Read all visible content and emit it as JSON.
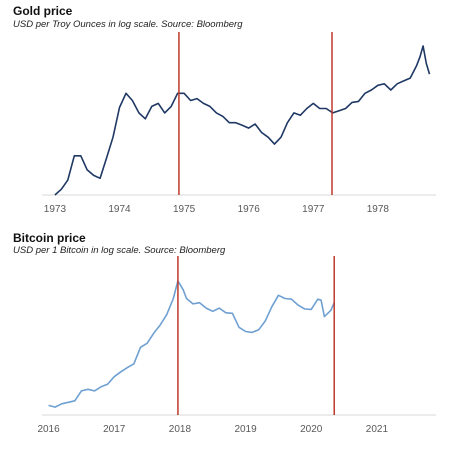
{
  "chart_data": [
    {
      "type": "line",
      "title": "Gold price",
      "subtitle": "USD per Troy Ounces in log scale. Source: Bloomberg",
      "xlabel": "",
      "ylabel": "",
      "y_scale": "log",
      "y_axis_labels_shown": false,
      "grid": false,
      "xlim": [
        1972.8,
        1978.9
      ],
      "ylim": [
        90,
        900
      ],
      "x_ticks": [
        "1973",
        "1974",
        "1975",
        "1976",
        "1977",
        "1978"
      ],
      "vertical_markers": [
        {
          "x": 1974.92,
          "color": "#c0392b"
        },
        {
          "x": 1977.29,
          "color": "#c0392b"
        }
      ],
      "series": [
        {
          "color": "#1f3864",
          "x": [
            1973.0,
            1973.1,
            1973.2,
            1973.3,
            1973.4,
            1973.5,
            1973.6,
            1973.7,
            1973.8,
            1973.9,
            1974.0,
            1974.1,
            1974.2,
            1974.3,
            1974.4,
            1974.5,
            1974.6,
            1974.7,
            1974.8,
            1974.9,
            1974.95,
            1975.0,
            1975.1,
            1975.2,
            1975.3,
            1975.4,
            1975.5,
            1975.6,
            1975.7,
            1975.8,
            1975.9,
            1976.0,
            1976.1,
            1976.2,
            1976.3,
            1976.4,
            1976.5,
            1976.6,
            1976.7,
            1976.8,
            1976.9,
            1977.0,
            1977.1,
            1977.2,
            1977.3,
            1977.4,
            1977.5,
            1977.6,
            1977.7,
            1977.8,
            1977.9,
            1978.0,
            1978.1,
            1978.2,
            1978.3,
            1978.4,
            1978.5,
            1978.6,
            1978.65,
            1978.7,
            1978.75,
            1978.8
          ],
          "y": [
            90,
            98,
            112,
            160,
            160,
            130,
            120,
            115,
            155,
            210,
            325,
            400,
            360,
            300,
            275,
            330,
            345,
            300,
            330,
            400,
            400,
            400,
            360,
            370,
            345,
            330,
            300,
            285,
            260,
            260,
            250,
            240,
            255,
            225,
            210,
            190,
            210,
            260,
            300,
            290,
            320,
            345,
            320,
            320,
            300,
            310,
            320,
            350,
            355,
            400,
            420,
            450,
            460,
            420,
            460,
            480,
            500,
            600,
            680,
            800,
            620,
            530
          ]
        }
      ]
    },
    {
      "type": "line",
      "title": "Bitcoin price",
      "subtitle": "USD per 1 Bitcoin in log scale. Source: Bloomberg",
      "xlabel": "",
      "ylabel": "",
      "y_scale": "log",
      "y_axis_labels_shown": false,
      "grid": false,
      "xlim": [
        2015.9,
        2021.9
      ],
      "ylim": [
        300,
        30000
      ],
      "x_ticks": [
        "2016",
        "2017",
        "2018",
        "2019",
        "2020",
        "2021"
      ],
      "vertical_markers": [
        {
          "x": 2017.97,
          "color": "#c0392b"
        },
        {
          "x": 2020.35,
          "color": "#c0392b"
        }
      ],
      "series": [
        {
          "color": "#6fa0d2",
          "x": [
            2016.0,
            2016.1,
            2016.2,
            2016.3,
            2016.4,
            2016.5,
            2016.6,
            2016.7,
            2016.8,
            2016.9,
            2017.0,
            2017.1,
            2017.2,
            2017.3,
            2017.4,
            2017.5,
            2017.6,
            2017.7,
            2017.8,
            2017.9,
            2017.97,
            2018.05,
            2018.1,
            2018.2,
            2018.3,
            2018.4,
            2018.5,
            2018.6,
            2018.7,
            2018.8,
            2018.9,
            2019.0,
            2019.1,
            2019.2,
            2019.3,
            2019.4,
            2019.5,
            2019.6,
            2019.7,
            2019.8,
            2019.9,
            2020.0,
            2020.1,
            2020.15,
            2020.2,
            2020.3,
            2020.35
          ],
          "y": [
            400,
            380,
            420,
            440,
            460,
            620,
            650,
            620,
            700,
            760,
            950,
            1100,
            1250,
            1400,
            2300,
            2600,
            3500,
            4500,
            6200,
            10000,
            17000,
            13000,
            10000,
            8500,
            8800,
            7500,
            6800,
            7500,
            6500,
            6400,
            4200,
            3700,
            3600,
            3900,
            5100,
            7800,
            11000,
            10000,
            9800,
            8200,
            7300,
            7200,
            9800,
            9500,
            5800,
            7000,
            8800
          ]
        }
      ]
    }
  ]
}
